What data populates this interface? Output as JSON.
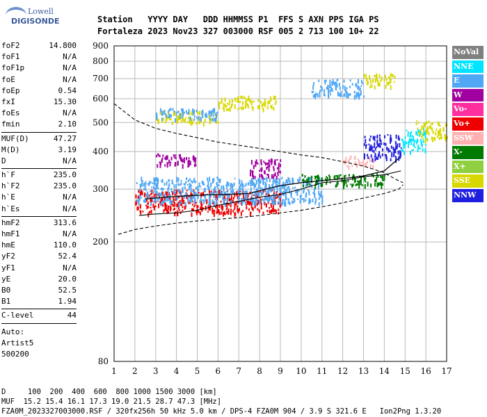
{
  "logo": {
    "line1": "Lowell",
    "line2": "DIGISONDE"
  },
  "header": {
    "line1": "Station   YYYY DAY   DDD HHMMSS P1  FFS S AXN PPS IGA PS",
    "line2": "Fortaleza 2023 Nov23 327 003000 RSF 005 2 713 100 10+ 22"
  },
  "params": [
    [
      {
        "name": "foF2",
        "value": "14.800"
      },
      {
        "name": "foF1",
        "value": "N/A"
      },
      {
        "name": "foF1p",
        "value": "N/A"
      },
      {
        "name": "foE",
        "value": "N/A"
      },
      {
        "name": "foEp",
        "value": "0.54"
      },
      {
        "name": "fxI",
        "value": "15.30"
      },
      {
        "name": "foEs",
        "value": "N/A"
      },
      {
        "name": "fmin",
        "value": "2.10"
      }
    ],
    [
      {
        "name": "MUF(D)",
        "value": "47.27"
      },
      {
        "name": "M(D)",
        "value": "3.19"
      },
      {
        "name": "D",
        "value": "N/A"
      }
    ],
    [
      {
        "name": "h`F",
        "value": "235.0"
      },
      {
        "name": "h`F2",
        "value": "235.0"
      },
      {
        "name": "h`E",
        "value": "N/A"
      },
      {
        "name": "h`Es",
        "value": "N/A"
      }
    ],
    [
      {
        "name": "hmF2",
        "value": "313.6"
      },
      {
        "name": "hmF1",
        "value": "N/A"
      },
      {
        "name": "hmE",
        "value": "110.0"
      },
      {
        "name": "yF2",
        "value": "52.4"
      },
      {
        "name": "yF1",
        "value": "N/A"
      },
      {
        "name": "yE",
        "value": "20.0"
      },
      {
        "name": "B0",
        "value": "52.5"
      },
      {
        "name": "B1",
        "value": "1.94"
      }
    ],
    [
      {
        "name": "C-level",
        "value": "44"
      }
    ]
  ],
  "auto": {
    "line1": "Auto:",
    "line2": "Artist5",
    "line3": "500200"
  },
  "footer": {
    "line1": "D     100  200  400  600  800 1000 1500 3000 [km]",
    "line2": "MUF  15.2 15.4 16.1 17.3 19.0 21.5 28.7 47.3 [MHz]",
    "line3": "FZA0M_2023327003000.RSF / 320fx256h 50 kHz 5.0 km / DPS-4 FZA0M 904 / 3.9 S 321.6 E   Ion2Png 1.3.20"
  },
  "legend": [
    {
      "label": "NoVal",
      "color": "#808080"
    },
    {
      "label": "NNE",
      "color": "#00e5ff"
    },
    {
      "label": "E",
      "color": "#4fa7f5"
    },
    {
      "label": "W",
      "color": "#a000a0"
    },
    {
      "label": "Vo-",
      "color": "#ff2f9f"
    },
    {
      "label": "Vo+",
      "color": "#ee0000"
    },
    {
      "label": "SSW",
      "color": "#ffb0b0"
    },
    {
      "label": "X-",
      "color": "#007a00"
    },
    {
      "label": "X+",
      "color": "#90d040"
    },
    {
      "label": "SSE",
      "color": "#d8d800"
    },
    {
      "label": "NNW",
      "color": "#1f1fdf"
    }
  ],
  "chart_data": {
    "type": "scatter",
    "xlim": [
      1,
      17
    ],
    "ylim": [
      80,
      900
    ],
    "y_scale": "log",
    "x_ticks": [
      "1",
      "2",
      "3",
      "4",
      "5",
      "6",
      "7",
      "8",
      "9",
      "10",
      "11",
      "12",
      "13",
      "14",
      "15",
      "16",
      "17"
    ],
    "y_ticks": [
      "80",
      "200",
      "300",
      "400",
      "500",
      "600",
      "700",
      "800",
      "900"
    ],
    "grid": true,
    "traces": {
      "ordinary": [
        [
          2.2,
          245
        ],
        [
          3,
          248
        ],
        [
          4,
          250
        ],
        [
          5,
          255
        ],
        [
          6,
          265
        ],
        [
          7,
          273
        ],
        [
          8,
          282
        ],
        [
          9,
          288
        ],
        [
          10,
          300
        ],
        [
          11,
          315
        ],
        [
          12,
          320
        ],
        [
          13,
          330
        ],
        [
          14,
          335
        ],
        [
          14.8,
          345
        ]
      ],
      "first_hop": [
        [
          2.5,
          278
        ],
        [
          3.5,
          282
        ],
        [
          4.5,
          285
        ],
        [
          5.5,
          287
        ],
        [
          6.5,
          288
        ],
        [
          7.5,
          290
        ],
        [
          8.3,
          300
        ],
        [
          9,
          308
        ],
        [
          10,
          315
        ],
        [
          11,
          320
        ],
        [
          12,
          325
        ],
        [
          13,
          332
        ],
        [
          14,
          345
        ],
        [
          14.7,
          380
        ]
      ],
      "model_upper": [
        [
          1,
          578
        ],
        [
          2,
          510
        ],
        [
          3,
          478
        ],
        [
          4,
          460
        ],
        [
          5,
          445
        ],
        [
          6,
          430
        ],
        [
          7,
          420
        ],
        [
          8,
          410
        ],
        [
          9,
          400
        ],
        [
          10,
          390
        ],
        [
          11,
          382
        ],
        [
          12,
          370
        ],
        [
          13,
          358
        ],
        [
          14,
          340
        ],
        [
          14.5,
          325
        ],
        [
          14.9,
          315
        ]
      ],
      "model_lower": [
        [
          1.2,
          212
        ],
        [
          2,
          220
        ],
        [
          3,
          226
        ],
        [
          4,
          231
        ],
        [
          5,
          235
        ],
        [
          6,
          238
        ],
        [
          7,
          241
        ],
        [
          8,
          245
        ],
        [
          9,
          250
        ],
        [
          10,
          255
        ],
        [
          11,
          262
        ],
        [
          12,
          270
        ],
        [
          13,
          280
        ],
        [
          14,
          290
        ],
        [
          14.7,
          300
        ],
        [
          14.9,
          310
        ]
      ]
    },
    "echo_bands": [
      {
        "color": "#a000a0",
        "x": [
          3,
          5
        ],
        "y": [
          360,
          395
        ]
      },
      {
        "color": "#d8d800",
        "x": [
          3,
          6
        ],
        "y": [
          500,
          550
        ]
      },
      {
        "color": "#4fa7f5",
        "x": [
          3,
          6
        ],
        "y": [
          515,
          560
        ]
      },
      {
        "color": "#d8d800",
        "x": [
          6,
          8.8
        ],
        "y": [
          555,
          615
        ]
      },
      {
        "color": "#4fa7f5",
        "x": [
          10.5,
          13
        ],
        "y": [
          615,
          700
        ]
      },
      {
        "color": "#d8d800",
        "x": [
          13,
          14.5
        ],
        "y": [
          660,
          730
        ]
      },
      {
        "color": "#ee0000",
        "x": [
          2,
          9
        ],
        "y": [
          250,
          300
        ]
      },
      {
        "color": "#4fa7f5",
        "x": [
          2,
          11
        ],
        "y": [
          270,
          330
        ]
      },
      {
        "color": "#a000a0",
        "x": [
          7.5,
          9
        ],
        "y": [
          330,
          380
        ]
      },
      {
        "color": "#ffb0b0",
        "x": [
          12,
          13.5
        ],
        "y": [
          360,
          390
        ]
      },
      {
        "color": "#1f1fdf",
        "x": [
          13,
          14.8
        ],
        "y": [
          380,
          460
        ]
      },
      {
        "color": "#00e5ff",
        "x": [
          14.8,
          16
        ],
        "y": [
          400,
          480
        ]
      },
      {
        "color": "#d8d800",
        "x": [
          15.5,
          17
        ],
        "y": [
          440,
          510
        ]
      },
      {
        "color": "#007a00",
        "x": [
          10,
          14
        ],
        "y": [
          310,
          340
        ]
      }
    ]
  }
}
